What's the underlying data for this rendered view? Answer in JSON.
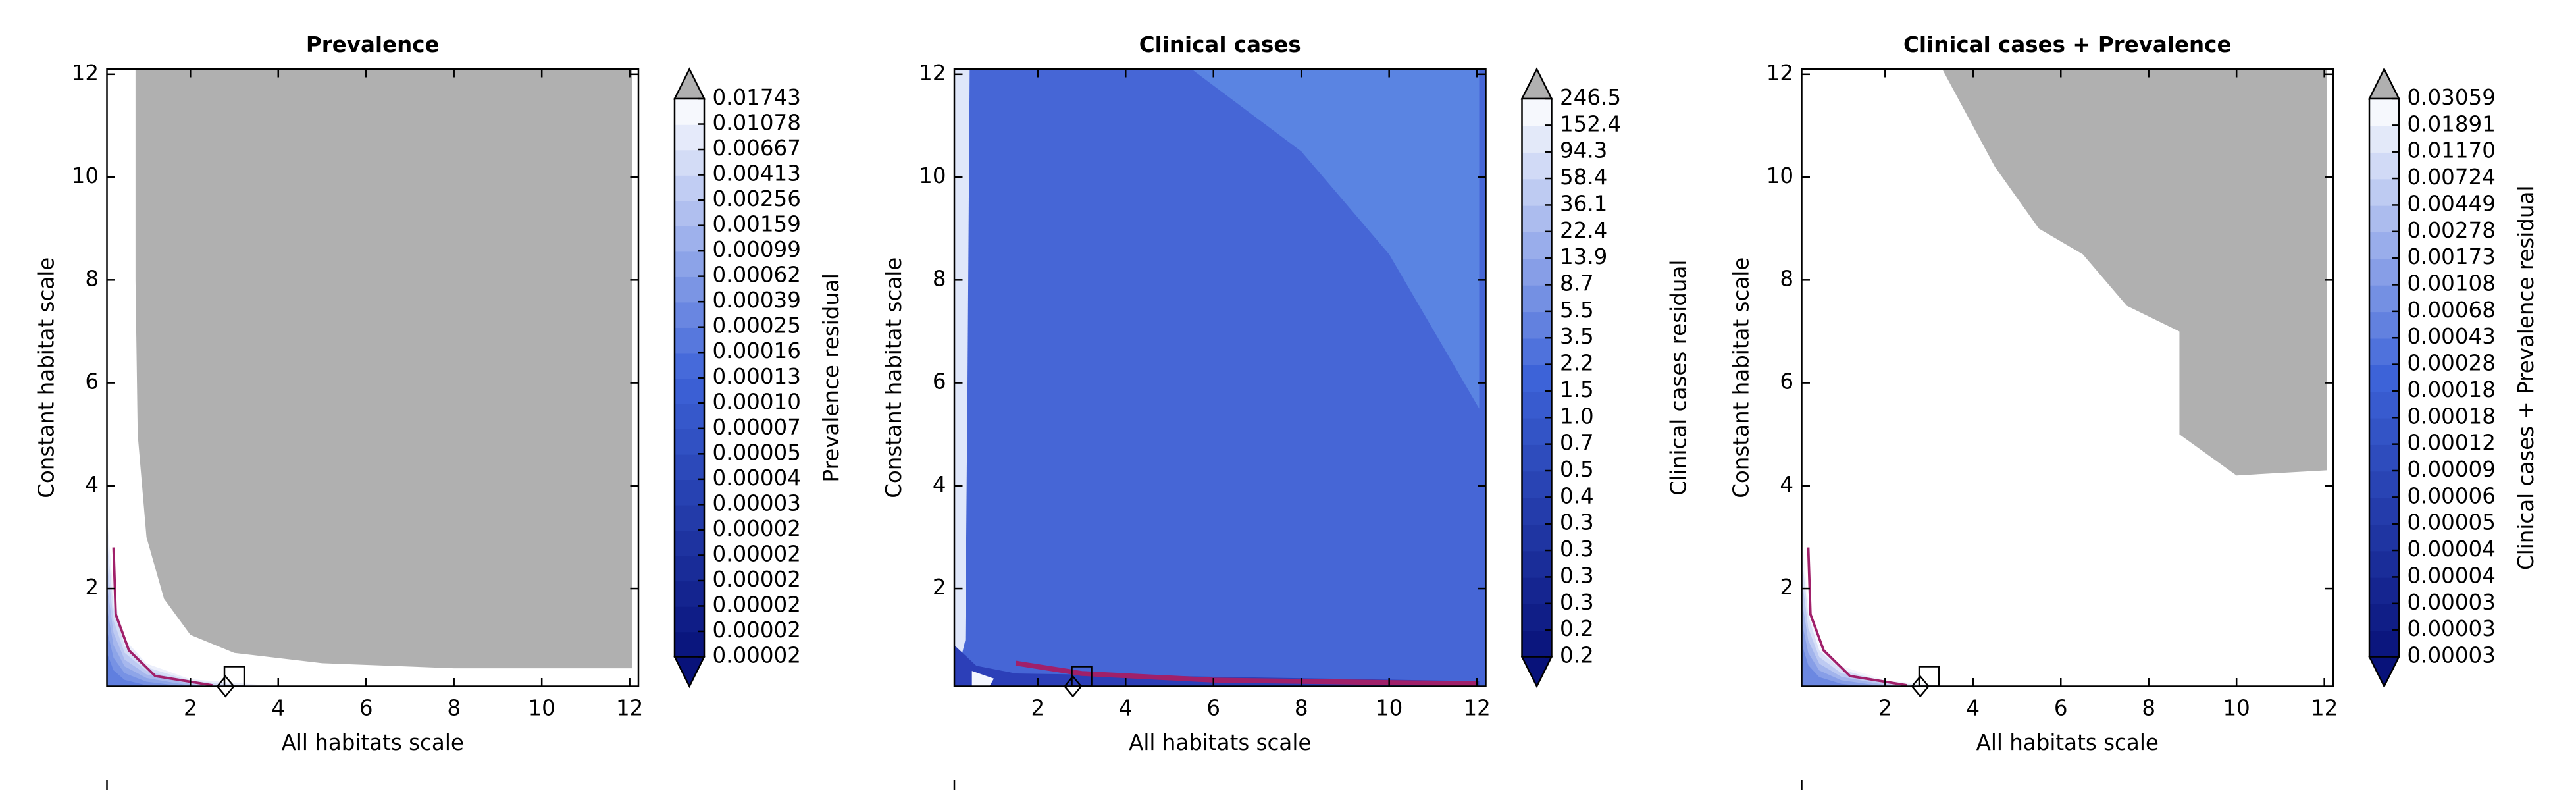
{
  "chart_data": [
    {
      "type": "contour",
      "title": "Prevalence",
      "x_label": "All habitats scale",
      "y_label": "Constant habitat scale",
      "xlim": [
        0.1,
        12.2
      ],
      "ylim": [
        0.1,
        12.1
      ],
      "xticks": [
        2,
        4,
        6,
        8,
        10,
        12
      ],
      "yticks": [
        2,
        4,
        6,
        8,
        10,
        12
      ],
      "colorbar": {
        "label": "Prevalence residual",
        "extend": "both",
        "cmap": [
          "#08127a",
          "#3d63d8",
          "#ffffff"
        ],
        "over_color": "#b0b0b0",
        "under_color": "#08127a",
        "ticks": [
          2e-05,
          2e-05,
          2e-05,
          2e-05,
          2e-05,
          2e-05,
          3e-05,
          4e-05,
          5e-05,
          7e-05,
          {
            "value": 0.0001,
            "label": "0.00010"
          },
          0.00013,
          0.00016,
          0.00025,
          0.00039,
          0.00062,
          0.00099,
          0.00159,
          0.00256,
          0.00413,
          0.00667,
          0.01078,
          0.01743
        ]
      }
    },
    {
      "type": "contour",
      "title": "Clinical cases",
      "x_label": "All habitats scale",
      "y_label": "Constant habitat scale",
      "xlim": [
        0.1,
        12.2
      ],
      "ylim": [
        0.1,
        12.1
      ],
      "xticks": [
        2,
        4,
        6,
        8,
        10,
        12
      ],
      "yticks": [
        2,
        4,
        6,
        8,
        10,
        12
      ],
      "colorbar": {
        "label": "Clinical cases residual",
        "extend": "both",
        "cmap": [
          "#08127a",
          "#3d63d8",
          "#ffffff"
        ],
        "over_color": "#b0b0b0",
        "under_color": "#08127a",
        "ticks": [
          0.2,
          0.2,
          0.3,
          0.3,
          0.3,
          0.3,
          0.4,
          0.5,
          0.7,
          {
            "value": 1,
            "label": "1.0"
          },
          1.5,
          2.2,
          3.5,
          5.5,
          8.7,
          13.9,
          22.4,
          36.1,
          58.4,
          94.3,
          152.4,
          246.5
        ]
      }
    },
    {
      "type": "contour",
      "title": "Clinical cases + Prevalence",
      "x_label": "All habitats scale",
      "y_label": "Constant habitat scale",
      "xlim": [
        0.1,
        12.2
      ],
      "ylim": [
        0.1,
        12.1
      ],
      "xticks": [
        2,
        4,
        6,
        8,
        10,
        12
      ],
      "yticks": [
        2,
        4,
        6,
        8,
        10,
        12
      ],
      "colorbar": {
        "label": "Clinical cases + Prevalence residual",
        "extend": "both",
        "cmap": [
          "#08127a",
          "#3d63d8",
          "#ffffff"
        ],
        "over_color": "#b0b0b0",
        "under_color": "#08127a",
        "ticks": [
          3e-05,
          3e-05,
          3e-05,
          4e-05,
          4e-05,
          5e-05,
          6e-05,
          9e-05,
          0.00012,
          0.00018,
          0.00018,
          0.00028,
          0.00043,
          0.00068,
          0.00108,
          0.00173,
          0.00278,
          0.00449,
          0.00724,
          {
            "value": 0.0117,
            "label": "0.01170"
          },
          0.01891,
          0.03059
        ]
      }
    }
  ]
}
